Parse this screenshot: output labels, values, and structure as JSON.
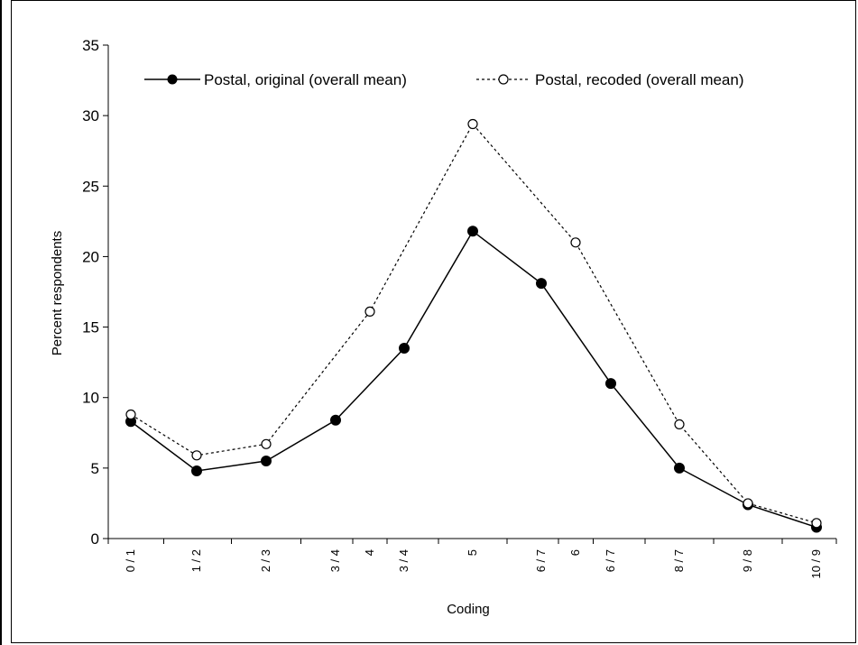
{
  "chart_data": {
    "type": "line",
    "title": "",
    "xlabel": "Coding",
    "ylabel": "Percent respondents",
    "ylim": [
      0,
      35
    ],
    "yticks": [
      "0",
      "5",
      "10",
      "15",
      "20",
      "25",
      "30",
      "35"
    ],
    "categories": [
      "0 / 1",
      "1 / 2",
      "2 / 3",
      "3 / 4",
      "4",
      "3 / 4",
      "5",
      "6 / 7",
      "6",
      "6 / 7",
      "8 / 7",
      "9 / 8",
      "10 / 9"
    ],
    "grid": false,
    "legend_position": "top",
    "series": [
      {
        "name": "Postal, original (overall mean)",
        "style": "solid",
        "marker": "filled-circle",
        "color": "#000000",
        "points": [
          {
            "category": "0 / 1",
            "y": 8.3
          },
          {
            "category": "1 / 2",
            "y": 4.8
          },
          {
            "category": "2 / 3",
            "y": 5.5
          },
          {
            "category": "3 / 4",
            "y": 8.4
          },
          {
            "category": "3 / 4",
            "y": 13.5
          },
          {
            "category": "5",
            "y": 21.8
          },
          {
            "category": "6 / 7",
            "y": 18.1
          },
          {
            "category": "6 / 7",
            "y": 11.0
          },
          {
            "category": "8 / 7",
            "y": 5.0
          },
          {
            "category": "9 / 8",
            "y": 2.4
          },
          {
            "category": "10 / 9",
            "y": 0.8
          }
        ]
      },
      {
        "name": "Postal, recoded (overall mean)",
        "style": "dotted",
        "marker": "open-circle",
        "color": "#000000",
        "points": [
          {
            "category": "0 / 1",
            "y": 8.8
          },
          {
            "category": "1 / 2",
            "y": 5.9
          },
          {
            "category": "2 / 3",
            "y": 6.7
          },
          {
            "category": "4",
            "y": 16.1
          },
          {
            "category": "5",
            "y": 29.4
          },
          {
            "category": "6",
            "y": 21.0
          },
          {
            "category": "8 / 7",
            "y": 8.1
          },
          {
            "category": "9 / 8",
            "y": 2.5
          },
          {
            "category": "10 / 9",
            "y": 1.1
          }
        ]
      }
    ]
  }
}
